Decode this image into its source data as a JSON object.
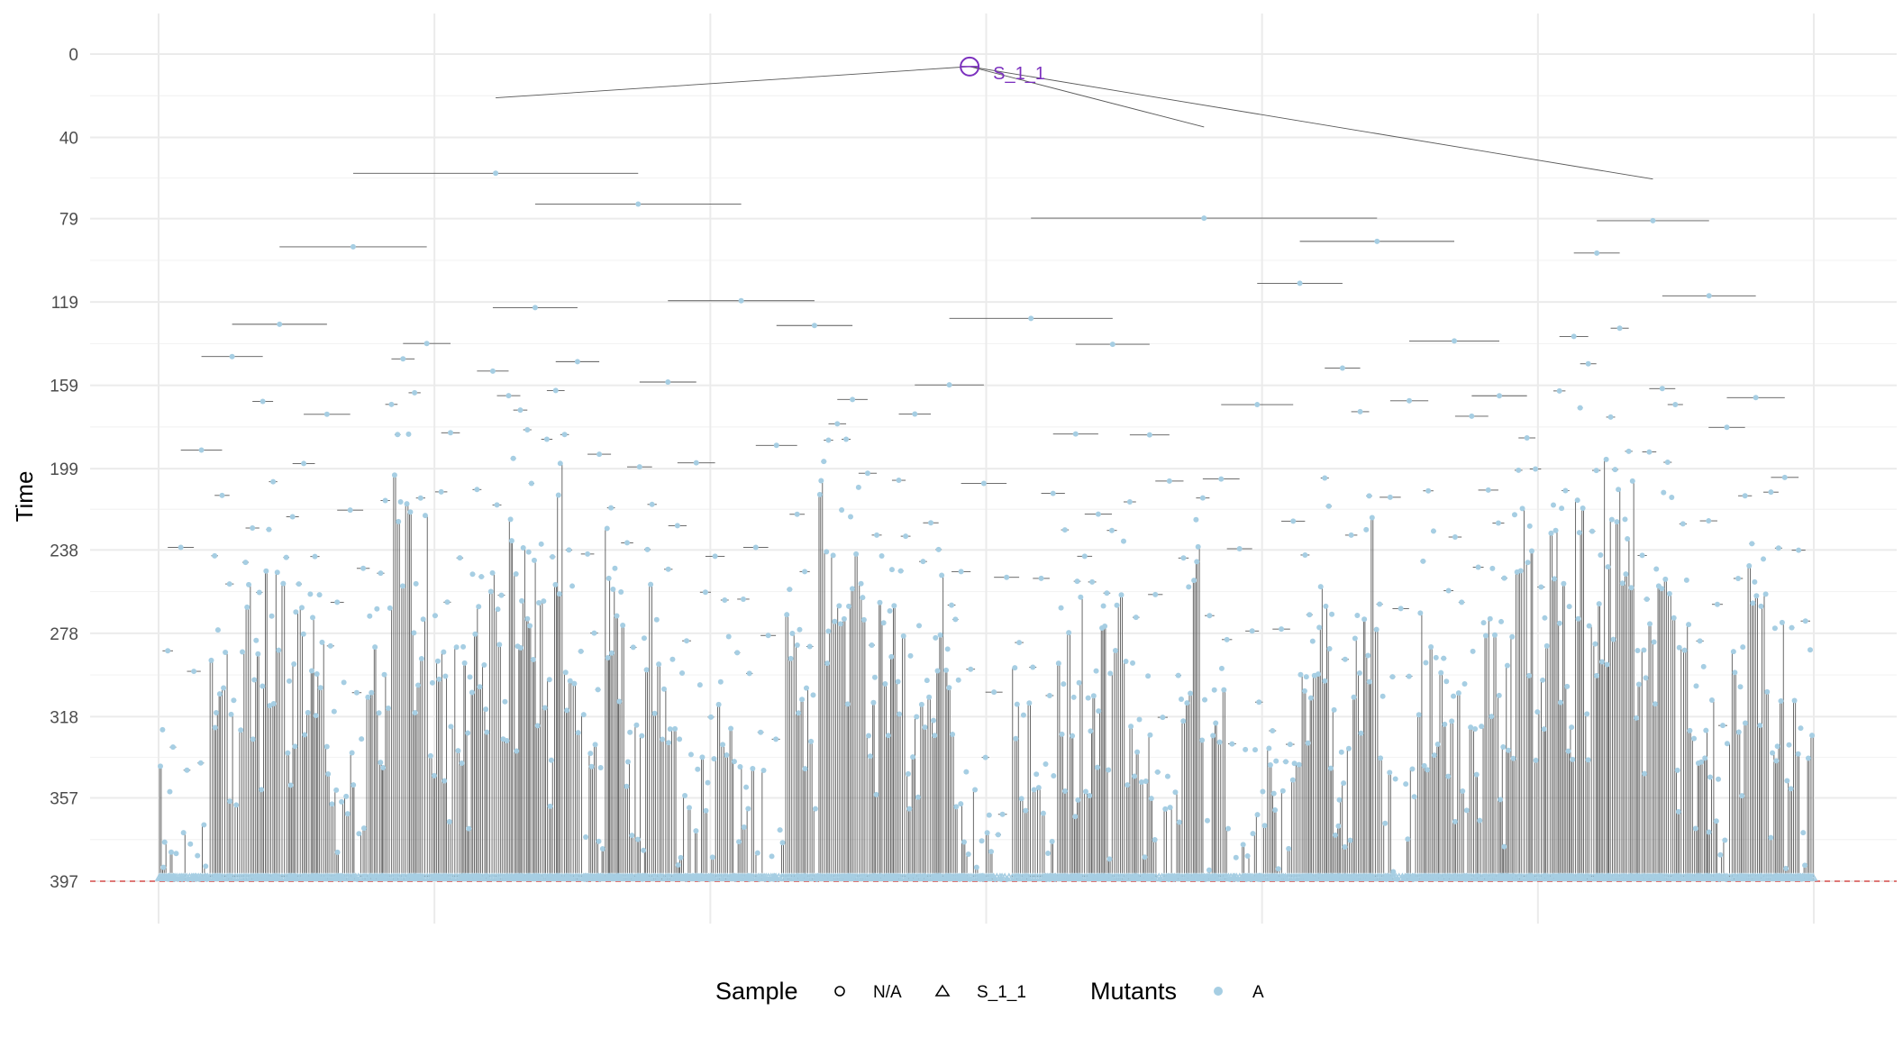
{
  "chart_data": {
    "type": "scatter",
    "subtype": "phylogenetic-tree",
    "ylabel": "Time",
    "xlabel": "",
    "ylim": [
      0,
      397
    ],
    "y_reversed": true,
    "yticks": [
      0,
      40,
      79,
      119,
      159,
      199,
      238,
      278,
      318,
      357,
      397
    ],
    "ytick_labels": [
      "0",
      "40",
      "79",
      "119",
      "159",
      "199",
      "238",
      "278",
      "318",
      "357",
      "397"
    ],
    "grid": true,
    "sampling_time": 397,
    "sampling_line_color": "#d9534f",
    "edge_color": "#595959",
    "node_color": "#a6cee3",
    "root": {
      "time": 6,
      "label": "S_1_1",
      "color": "#7b2fbe"
    },
    "top_branches": [
      {
        "from": 6,
        "to": 21,
        "spans_to": [
          22,
          41
        ]
      },
      {
        "from": 21,
        "to": 35,
        "spans_to": [
          47,
          56
        ]
      },
      {
        "from": 35,
        "to": 48,
        "spans_to": [
          63,
          76
        ]
      },
      {
        "from": 48,
        "to": 73,
        "spans_to": [
          70,
          87
        ]
      },
      {
        "from": 73,
        "to": 92,
        "spans_to": [
          75,
          90
        ]
      },
      {
        "from": 92,
        "to": 112,
        "spans_to": [
          58,
          69
        ]
      }
    ],
    "legend": {
      "position": "bottom",
      "groups": [
        {
          "title": "Sample",
          "entries": [
            {
              "label": "N/A",
              "shape": "circle"
            },
            {
              "label": "S_1_1",
              "shape": "triangle"
            }
          ]
        },
        {
          "title": "Mutants",
          "entries": [
            {
              "label": "A",
              "shape": "filled-circle",
              "color": "#a6cee3"
            }
          ]
        }
      ]
    }
  }
}
